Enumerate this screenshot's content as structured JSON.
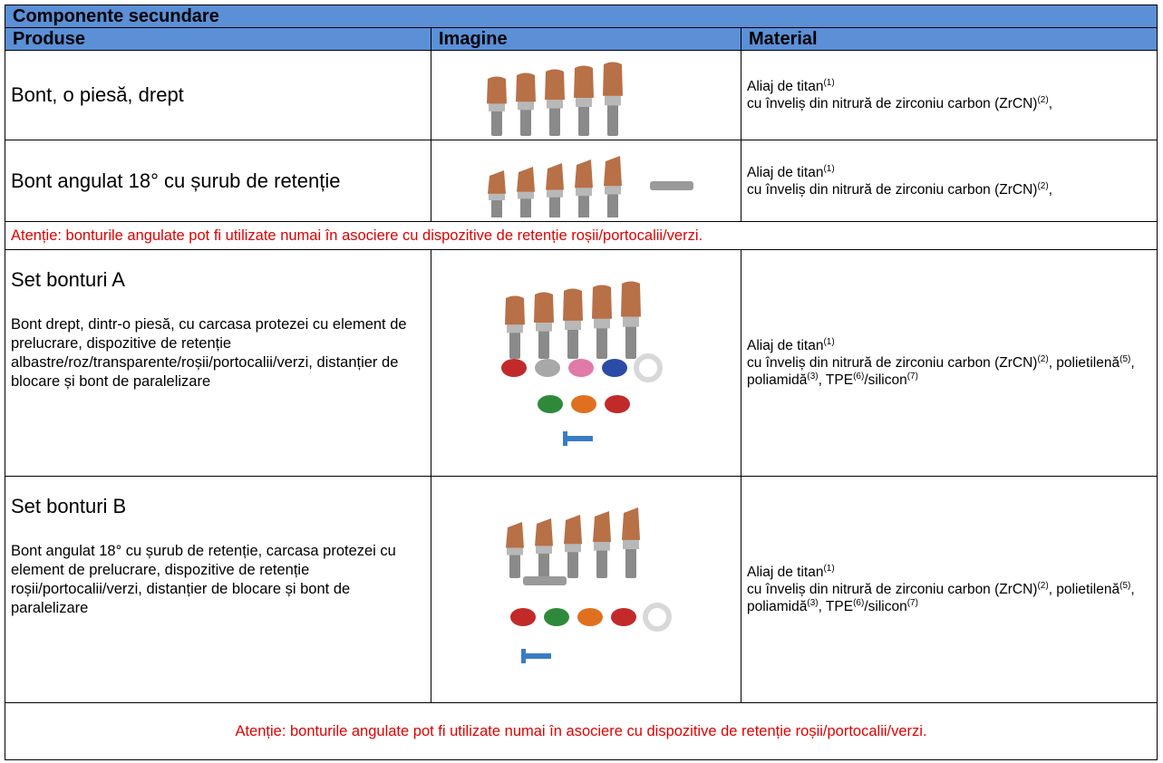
{
  "table": {
    "title": "Componente secundare",
    "headers": [
      "Produse",
      "Imagine",
      "Material"
    ],
    "rows": [
      {
        "product": "Bont, o piesă, drept",
        "material": [
          [
            {
              "text": "Aliaj de titan",
              "sup": "(1)"
            }
          ],
          [
            {
              "text": "cu înveliș din nitrură de zirconiu carbon (ZrCN)",
              "sup": "(2)"
            },
            {
              "text": ","
            }
          ]
        ]
      },
      {
        "product": "Bont angulat 18° cu șurub de retenție",
        "material": [
          [
            {
              "text": "Aliaj de titan",
              "sup": "(1)"
            }
          ],
          [
            {
              "text": "cu înveliș din nitrură de zirconiu carbon (ZrCN)",
              "sup": "(2)"
            },
            {
              "text": ","
            }
          ]
        ]
      },
      {
        "product": "Set bonturi A",
        "description": "Bont drept, dintr-o piesă, cu carcasa protezei cu element de prelucrare, dispozitive de retenție albastre/roz/transparente/roșii/portocalii/verzi, distanțier de blocare și bont de paralelizare",
        "material": [
          [
            {
              "text": "Aliaj de titan",
              "sup": "(1)"
            }
          ],
          [
            {
              "text": "cu înveliș din nitrură de zirconiu carbon (ZrCN)",
              "sup": "(2)"
            },
            {
              "text": ", polietilenă",
              "sup": "(5)"
            },
            {
              "text": ", poliamidă",
              "sup": "(3)"
            },
            {
              "text": ", TPE",
              "sup": "(6)"
            },
            {
              "text": "/silicon",
              "sup": "(7)"
            }
          ]
        ]
      },
      {
        "product": "Set bonturi B",
        "description": "Bont angulat 18° cu șurub de retenție, carcasa protezei cu element de prelucrare, dispozitive de retenție roșii/portocalii/verzi, distanțier de blocare și bont de paralelizare",
        "material": [
          [
            {
              "text": "Aliaj de titan",
              "sup": "(1)"
            }
          ],
          [
            {
              "text": "cu înveliș din nitrură de zirconiu carbon (ZrCN)",
              "sup": "(2)"
            },
            {
              "text": ", polietilenă",
              "sup": "(5)"
            },
            {
              "text": ", poliamidă",
              "sup": "(3)"
            },
            {
              "text": ", TPE",
              "sup": "(6)"
            },
            {
              "text": "/silicon",
              "sup": "(7)"
            }
          ]
        ]
      }
    ],
    "warning_1": "Atenție: bonturile angulate pot fi utilizate numai în asociere cu dispozitive de retenție roșii/portocalii/verzi.",
    "warning_2": "Atenție: bonturile angulate pot fi utilizate numai în asociere cu dispozitive de retenție roșii/portocalii/verzi."
  }
}
